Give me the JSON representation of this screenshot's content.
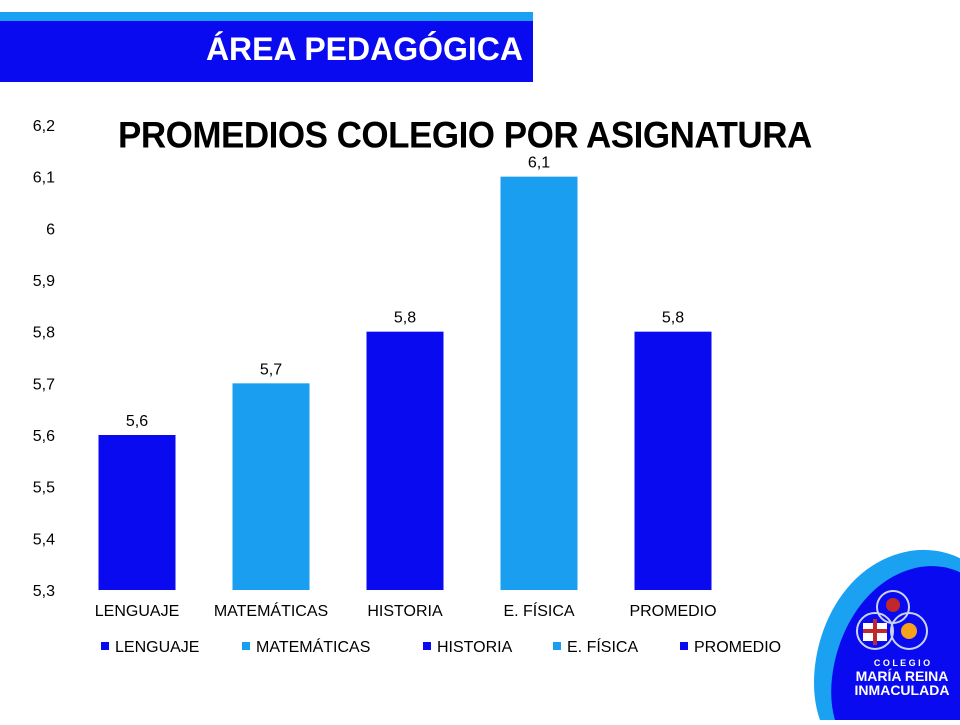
{
  "header": {
    "banner_title": "ÁREA PEDAGÓGICA"
  },
  "logo": {
    "line1": "C O L E G I O",
    "line2": "MARÍA REINA",
    "line3": "INMACULADA"
  },
  "colors": {
    "dark_blue": "#0a0af0",
    "light_blue": "#1a9ff0",
    "stripe": "#1ba1f2"
  },
  "chart_data": {
    "type": "bar",
    "title": "PROMEDIOS COLEGIO POR ASIGNATURA",
    "categories": [
      "LENGUAJE",
      "MATEMÁTICAS",
      "HISTORIA",
      "E. FÍSICA",
      "PROMEDIO"
    ],
    "values": [
      5.6,
      5.7,
      5.8,
      6.1,
      5.8
    ],
    "value_labels": [
      "5,6",
      "5,7",
      "5,8",
      "6,1",
      "5,8"
    ],
    "bar_colors": [
      "#0a0af0",
      "#1a9ff0",
      "#0a0af0",
      "#1a9ff0",
      "#0a0af0"
    ],
    "ylim": [
      5.3,
      6.2
    ],
    "yticks": [
      "5,3",
      "5,4",
      "5,5",
      "5,6",
      "5,7",
      "5,8",
      "5,9",
      "6",
      "6,1",
      "6,2"
    ],
    "xlabel": "",
    "ylabel": "",
    "grid": false,
    "legend": {
      "position": "bottom",
      "entries": [
        "LENGUAJE",
        "MATEMÁTICAS",
        "HISTORIA",
        "E. FÍSICA",
        "PROMEDIO"
      ]
    }
  }
}
